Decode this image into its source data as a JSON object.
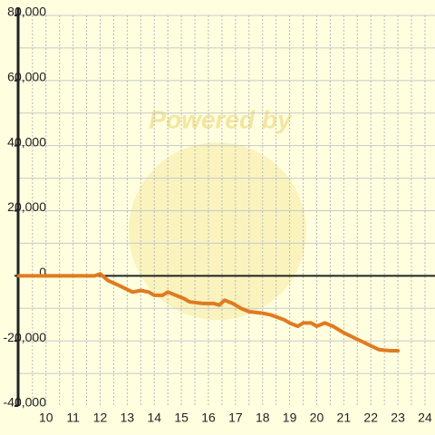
{
  "chart_data": {
    "type": "line",
    "watermark": "Powered by",
    "x": [
      9,
      11.8,
      12,
      12.3,
      12.7,
      13.2,
      13.5,
      13.8,
      14.0,
      14.3,
      14.5,
      14.8,
      15.1,
      15.3,
      15.8,
      16.2,
      16.4,
      16.6,
      16.9,
      17.2,
      17.5,
      18.0,
      18.3,
      18.8,
      19.0,
      19.3,
      19.5,
      19.8,
      20.0,
      20.3,
      20.6,
      21.0,
      21.5,
      22.0,
      22.3,
      22.7,
      23.0
    ],
    "series": [
      {
        "color": "#e07b20",
        "values": [
          0,
          0,
          600,
          -1500,
          -3000,
          -5000,
          -4500,
          -5000,
          -6000,
          -6000,
          -5000,
          -6000,
          -7000,
          -8000,
          -8500,
          -8500,
          -9000,
          -7500,
          -8500,
          -10000,
          -11000,
          -11500,
          -12000,
          -13500,
          -14500,
          -15500,
          -14500,
          -14500,
          -15500,
          -14500,
          -15500,
          -17500,
          -19500,
          -21500,
          -22700,
          -23000,
          -23000
        ]
      }
    ],
    "xlim": [
      8.97,
      24.37
    ],
    "ylim": [
      -40000,
      80000
    ],
    "xticks": [
      10,
      11,
      12,
      13,
      14,
      15,
      16,
      17,
      18,
      19,
      20,
      21,
      22,
      23,
      24
    ],
    "xgrid": [
      9.5,
      10,
      10.5,
      11,
      11.5,
      12,
      12.5,
      13,
      13.5,
      14,
      14.5,
      15,
      15.5,
      16,
      16.5,
      17,
      17.5,
      18,
      18.5,
      19,
      19.5,
      20,
      20.5,
      21,
      21.5,
      22,
      22.5,
      23,
      23.5,
      24
    ],
    "yticks": [
      {
        "value": -40000,
        "label": "-40,000"
      },
      {
        "value": -20000,
        "label": "-20,000"
      },
      0,
      {
        "value": 20000,
        "label": "20,000"
      },
      {
        "value": 40000,
        "label": "40,000"
      },
      {
        "value": 60000,
        "label": "60,000"
      },
      {
        "value": 80000,
        "label": "80,000"
      }
    ],
    "ygrid": [
      -30000,
      -20000,
      -10000,
      10000,
      20000,
      30000,
      40000,
      50000,
      60000,
      70000,
      80000
    ],
    "grid": true
  }
}
